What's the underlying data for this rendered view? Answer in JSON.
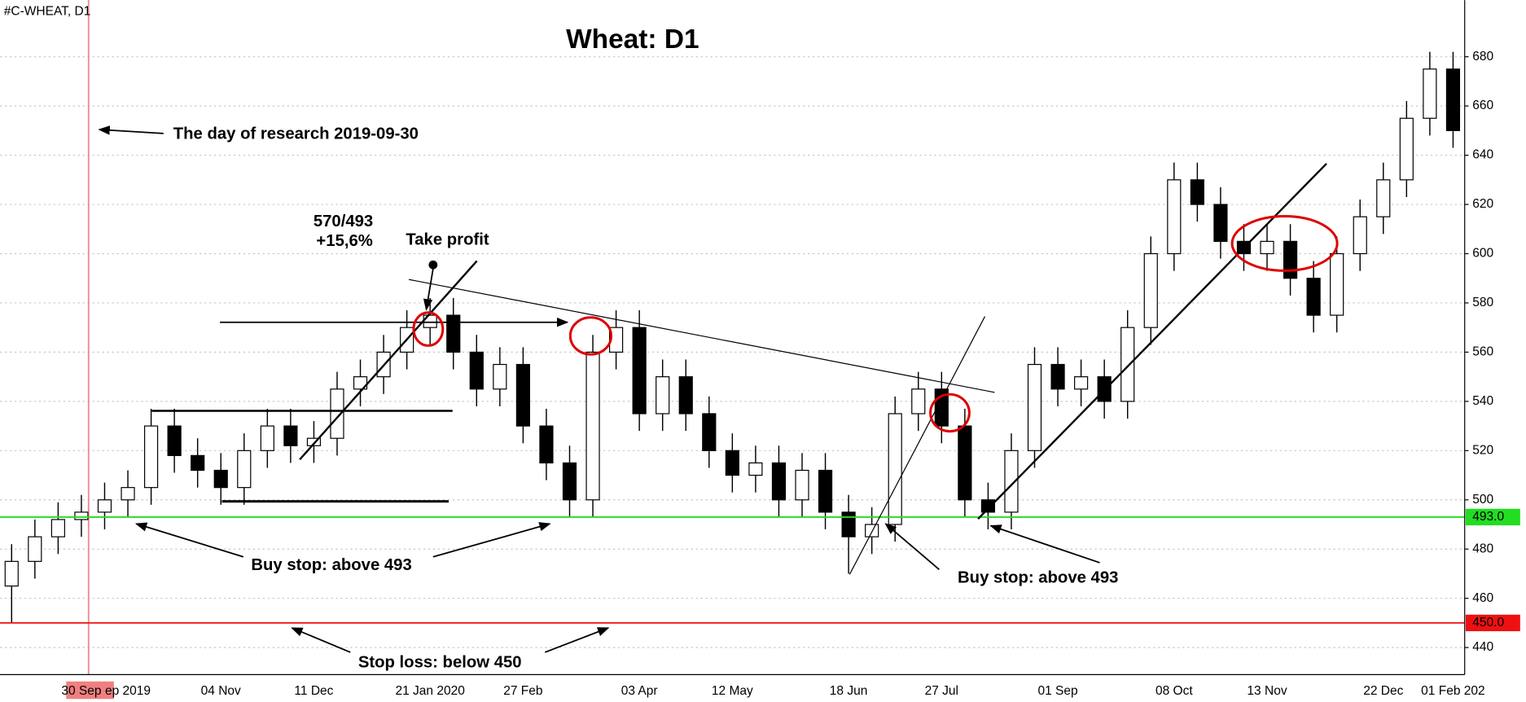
{
  "chart_data": {
    "type": "candlestick",
    "symbol": "#C-WHEAT, D1",
    "title": "Wheat: D1",
    "categories": [
      null,
      null,
      null,
      "30 Sep",
      null,
      "ep 2019",
      null,
      null,
      null,
      "04 Nov",
      null,
      null,
      null,
      "11 Dec",
      null,
      null,
      null,
      null,
      "21 Jan 2020",
      null,
      null,
      null,
      "27 Feb",
      null,
      null,
      null,
      null,
      "03 Apr",
      null,
      null,
      null,
      "12 May",
      null,
      null,
      null,
      null,
      "18 Jun",
      null,
      null,
      null,
      "27 Jul",
      null,
      null,
      null,
      null,
      "01 Sep",
      null,
      null,
      null,
      null,
      "08 Oct",
      null,
      null,
      null,
      "13 Nov",
      null,
      null,
      null,
      null,
      "22 Dec",
      null,
      null,
      "01 Feb 202"
    ],
    "open": [
      465,
      475,
      485,
      492,
      495,
      500,
      505,
      530,
      518,
      512,
      505,
      520,
      530,
      522,
      525,
      545,
      550,
      560,
      570,
      575,
      560,
      545,
      555,
      530,
      515,
      500,
      560,
      570,
      535,
      550,
      535,
      520,
      510,
      515,
      500,
      512,
      495,
      485,
      490,
      535,
      545,
      530,
      500,
      495,
      520,
      555,
      545,
      550,
      540,
      570,
      600,
      630,
      620,
      605,
      600,
      605,
      590,
      575,
      600,
      615,
      630,
      655,
      675
    ],
    "high": [
      482,
      492,
      499,
      502,
      507,
      512,
      537,
      537,
      525,
      519,
      527,
      537,
      537,
      532,
      552,
      557,
      567,
      577,
      582,
      582,
      567,
      562,
      562,
      537,
      522,
      567,
      577,
      577,
      557,
      557,
      542,
      527,
      522,
      522,
      519,
      519,
      502,
      497,
      542,
      552,
      552,
      537,
      507,
      527,
      562,
      562,
      557,
      557,
      577,
      607,
      637,
      637,
      627,
      612,
      612,
      612,
      597,
      607,
      622,
      637,
      662,
      682,
      682
    ],
    "low": [
      450,
      468,
      478,
      485,
      488,
      493,
      498,
      511,
      505,
      498,
      498,
      513,
      515,
      515,
      518,
      538,
      543,
      553,
      563,
      553,
      538,
      538,
      523,
      508,
      493,
      493,
      553,
      528,
      528,
      528,
      513,
      503,
      503,
      493,
      493,
      488,
      470,
      478,
      483,
      528,
      523,
      493,
      488,
      488,
      513,
      538,
      538,
      533,
      533,
      563,
      593,
      613,
      598,
      593,
      593,
      583,
      568,
      568,
      593,
      608,
      623,
      648,
      643
    ],
    "close": [
      475,
      485,
      492,
      495,
      500,
      505,
      530,
      518,
      512,
      505,
      520,
      530,
      522,
      525,
      545,
      550,
      560,
      570,
      575,
      560,
      545,
      555,
      530,
      515,
      500,
      560,
      570,
      535,
      550,
      535,
      520,
      510,
      515,
      500,
      512,
      495,
      485,
      490,
      535,
      545,
      530,
      500,
      495,
      520,
      555,
      545,
      550,
      540,
      570,
      600,
      630,
      620,
      605,
      600,
      605,
      590,
      575,
      600,
      615,
      630,
      655,
      675,
      650
    ],
    "ylim": [
      429,
      703
    ],
    "yticks": [
      440,
      460,
      480,
      500,
      520,
      540,
      560,
      580,
      600,
      620,
      640,
      660,
      680
    ],
    "grid": true,
    "up_color": "#ffffff",
    "down_color": "#000000",
    "hlines": [
      {
        "value": 493,
        "label": "493.0",
        "color": "#22dd22"
      },
      {
        "value": 450,
        "label": "450.0",
        "color": "#ee1111"
      }
    ],
    "annotations": [
      "The day of research 2019-09-30",
      "570/493",
      "+15,6%",
      "Take profit",
      "Buy stop: above 493",
      "Buy stop: above 493",
      "Stop loss: below 450"
    ]
  }
}
